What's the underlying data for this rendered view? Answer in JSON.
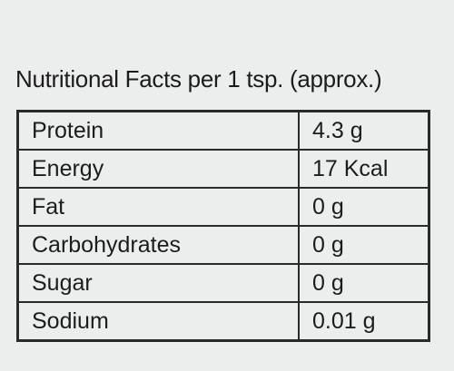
{
  "title": "Nutritional Facts per 1 tsp. (approx.)",
  "table": {
    "rows": [
      [
        "Protein",
        "4.3 g"
      ],
      [
        "Energy",
        "17 Kcal"
      ],
      [
        "Fat",
        "0 g"
      ],
      [
        "Carbohydrates",
        "0 g"
      ],
      [
        "Sugar",
        "0 g"
      ],
      [
        "Sodium",
        "0.01 g"
      ]
    ]
  }
}
